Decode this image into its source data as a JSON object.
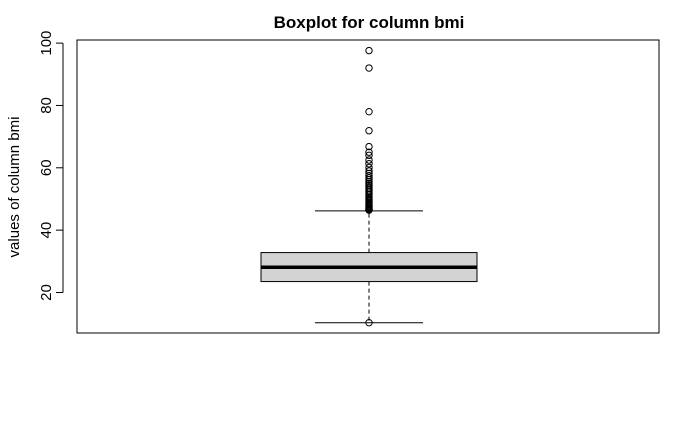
{
  "chart_data": {
    "type": "boxplot",
    "title": "Boxplot for column bmi",
    "ylabel": "values of column bmi",
    "xlabel": "",
    "ylim": [
      7,
      101
    ],
    "yticks": [
      20,
      40,
      60,
      80,
      100
    ],
    "grid": false,
    "box": {
      "lower_whisker": 10.3,
      "q1": 23.5,
      "median": 28.1,
      "q3": 32.8,
      "upper_whisker": 46.2
    },
    "outliers": [
      10.3,
      46.4,
      46.6,
      46.8,
      47.0,
      47.3,
      47.6,
      47.9,
      48.2,
      48.5,
      48.9,
      49.3,
      49.7,
      50.1,
      50.5,
      50.9,
      51.4,
      51.9,
      52.4,
      52.9,
      53.4,
      53.9,
      54.4,
      55.0,
      55.6,
      56.2,
      56.8,
      57.5,
      58.2,
      59.0,
      60.1,
      61.3,
      62.5,
      64.0,
      65.0,
      66.8,
      71.9,
      78.0,
      92.0,
      97.6
    ],
    "colors": {
      "box_fill": "#d3d3d3",
      "stroke": "#000000"
    }
  }
}
